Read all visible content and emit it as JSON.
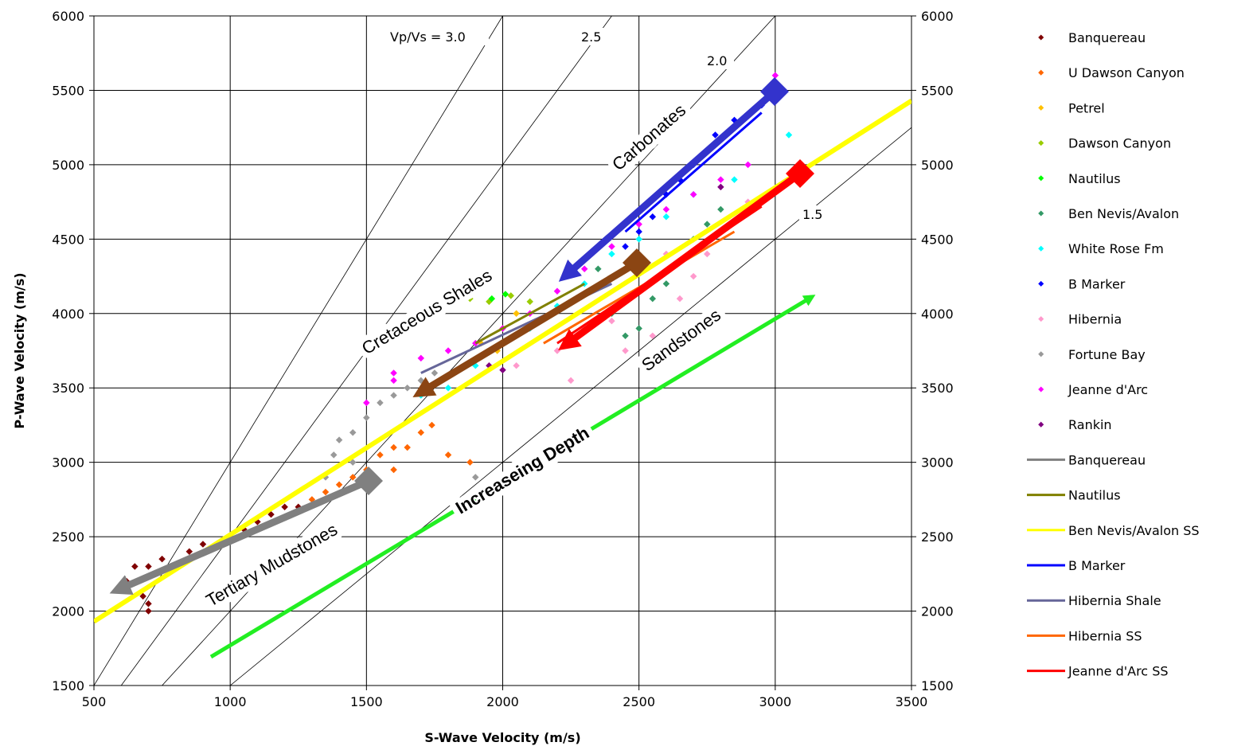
{
  "chart_data": {
    "type": "scatter",
    "xlabel": "S-Wave Velocity (m/s)",
    "ylabel": "P-Wave Velocity (m/s)",
    "xlim": [
      500,
      3500
    ],
    "ylim": [
      1500,
      6000
    ],
    "xticks": [
      500,
      1000,
      1500,
      2000,
      2500,
      3000,
      3500
    ],
    "yticks": [
      1500,
      2000,
      2500,
      3000,
      3500,
      4000,
      4500,
      5000,
      5500,
      6000
    ],
    "grid": true,
    "ratio_lines": [
      {
        "value": 3.0,
        "label": "Vp/Vs = 3.0"
      },
      {
        "value": 2.5,
        "label": "2.5"
      },
      {
        "value": 2.0,
        "label": "2.0"
      },
      {
        "value": 1.5,
        "label": "1.5"
      }
    ],
    "series": [
      {
        "name": "Banquereau",
        "color": "#800000",
        "x": [
          620,
          650,
          680,
          700,
          700,
          750,
          800,
          850,
          900,
          950,
          1000,
          1050,
          1100,
          1150,
          1200,
          1250,
          700
        ],
        "y": [
          2200,
          2300,
          2100,
          2050,
          2300,
          2350,
          2300,
          2400,
          2450,
          2450,
          2500,
          2550,
          2600,
          2650,
          2700,
          2700,
          2000
        ]
      },
      {
        "name": "U Dawson Canyon",
        "color": "#ff6600",
        "x": [
          1300,
          1350,
          1400,
          1450,
          1500,
          1550,
          1600,
          1650,
          1700,
          1740,
          1800,
          1880,
          1600
        ],
        "y": [
          2750,
          2800,
          2850,
          2900,
          2950,
          3050,
          3100,
          3100,
          3200,
          3250,
          3050,
          3000,
          2950
        ]
      },
      {
        "name": "Petrel",
        "color": "#ffc000",
        "x": [
          1920,
          2000,
          2050,
          1980
        ],
        "y": [
          3800,
          3900,
          4000,
          3750
        ]
      },
      {
        "name": "Dawson Canyon",
        "color": "#99cc00",
        "x": [
          1880,
          1950,
          2030,
          2100
        ],
        "y": [
          4100,
          4080,
          4120,
          4080
        ]
      },
      {
        "name": "Nautilus",
        "color": "#00ff00",
        "x": [
          1960,
          2010
        ],
        "y": [
          4100,
          4130
        ]
      },
      {
        "name": "Ben Nevis/Avalon",
        "color": "#339966",
        "x": [
          2400,
          2450,
          2500,
          2550,
          2600,
          2650,
          2700,
          2750,
          2800,
          2350
        ],
        "y": [
          4000,
          3850,
          3900,
          4100,
          4200,
          4350,
          4500,
          4600,
          4700,
          4300
        ]
      },
      {
        "name": "White Rose Fm",
        "color": "#00ffff",
        "x": [
          1800,
          1900,
          2000,
          2100,
          2200,
          2300,
          2400,
          2500,
          2600,
          2700,
          2850,
          3050,
          1700
        ],
        "y": [
          3500,
          3650,
          3800,
          3900,
          4050,
          4200,
          4400,
          4500,
          4650,
          4800,
          4900,
          5200,
          3450
        ]
      },
      {
        "name": "B Marker",
        "color": "#0000ff",
        "x": [
          2450,
          2500,
          2550,
          2600,
          2650,
          2700,
          2750,
          2850,
          2950,
          2780
        ],
        "y": [
          4450,
          4550,
          4650,
          4800,
          4900,
          5000,
          5100,
          5300,
          5400,
          5200
        ]
      },
      {
        "name": "Hibernia",
        "color": "#ff99cc",
        "x": [
          2050,
          2200,
          2300,
          2400,
          2450,
          2550,
          2650,
          2700,
          2750,
          2800,
          2900,
          2250,
          2600
        ],
        "y": [
          3650,
          3750,
          3900,
          3950,
          3750,
          3850,
          4100,
          4250,
          4400,
          4550,
          4750,
          3550,
          4400
        ]
      },
      {
        "name": "Fortune Bay",
        "color": "#999999",
        "x": [
          1350,
          1380,
          1400,
          1450,
          1500,
          1550,
          1600,
          1650,
          1700,
          1750,
          1900,
          1450
        ],
        "y": [
          2900,
          3050,
          3150,
          3200,
          3300,
          3400,
          3450,
          3500,
          3550,
          3600,
          2900,
          3000
        ]
      },
      {
        "name": "Jeanne d'Arc",
        "color": "#ff00ff",
        "x": [
          1500,
          1600,
          1700,
          1800,
          1900,
          2000,
          2100,
          2200,
          2300,
          2400,
          2500,
          2600,
          2700,
          2800,
          3000,
          2900,
          1600
        ],
        "y": [
          3400,
          3550,
          3700,
          3750,
          3800,
          3900,
          4000,
          4150,
          4300,
          4450,
          4600,
          4700,
          4800,
          4900,
          5600,
          5000,
          3600
        ]
      },
      {
        "name": "Rankin",
        "color": "#800080",
        "x": [
          1950,
          2000,
          2800
        ],
        "y": [
          3650,
          3620,
          4850
        ]
      }
    ],
    "lines": [
      {
        "name": "Banquereau",
        "color": "#808080",
        "x": [
          600,
          1300
        ],
        "y": [
          2150,
          2700
        ]
      },
      {
        "name": "Nautilus",
        "color": "#808000",
        "x": [
          1900,
          2300
        ],
        "y": [
          3800,
          4200
        ]
      },
      {
        "name": "Ben Nevis/Avalon SS",
        "color": "#ffff00",
        "x": [
          500,
          3500
        ],
        "y": [
          1930,
          5430
        ]
      },
      {
        "name": "B Marker",
        "color": "#0000ff",
        "x": [
          2450,
          2950
        ],
        "y": [
          4550,
          5350
        ]
      },
      {
        "name": "Hibernia Shale",
        "color": "#666699",
        "x": [
          1700,
          2400
        ],
        "y": [
          3600,
          4200
        ]
      },
      {
        "name": "Hibernia SS",
        "color": "#ff6600",
        "x": [
          2150,
          2850
        ],
        "y": [
          3800,
          4550
        ]
      },
      {
        "name": "Jeanne d'Arc SS",
        "color": "#ff0000",
        "x": [
          2200,
          2950
        ],
        "y": [
          3800,
          4720
        ]
      }
    ],
    "annotations": [
      "Carbonates",
      "Cretaceous Shales",
      "Sandstones",
      "Tertiary Mudstones",
      "Increaseing Depth"
    ]
  }
}
